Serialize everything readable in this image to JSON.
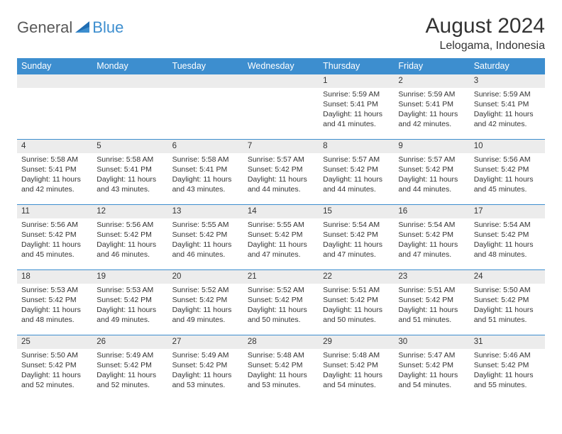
{
  "logo": {
    "general": "General",
    "blue": "Blue"
  },
  "header": {
    "title": "August 2024",
    "subtitle": "Lelogama, Indonesia"
  },
  "colors": {
    "header_bg": "#3d8ecf",
    "header_text": "#ffffff",
    "daynum_bg": "#ececec",
    "row_border": "#3d8ecf",
    "body_text": "#333333",
    "logo_general": "#585858",
    "logo_blue": "#3d8ecf"
  },
  "weekdays": [
    "Sunday",
    "Monday",
    "Tuesday",
    "Wednesday",
    "Thursday",
    "Friday",
    "Saturday"
  ],
  "weeks": [
    [
      null,
      null,
      null,
      null,
      {
        "n": "1",
        "sr": "5:59 AM",
        "ss": "5:41 PM",
        "dl": "11 hours and 41 minutes."
      },
      {
        "n": "2",
        "sr": "5:59 AM",
        "ss": "5:41 PM",
        "dl": "11 hours and 42 minutes."
      },
      {
        "n": "3",
        "sr": "5:59 AM",
        "ss": "5:41 PM",
        "dl": "11 hours and 42 minutes."
      }
    ],
    [
      {
        "n": "4",
        "sr": "5:58 AM",
        "ss": "5:41 PM",
        "dl": "11 hours and 42 minutes."
      },
      {
        "n": "5",
        "sr": "5:58 AM",
        "ss": "5:41 PM",
        "dl": "11 hours and 43 minutes."
      },
      {
        "n": "6",
        "sr": "5:58 AM",
        "ss": "5:41 PM",
        "dl": "11 hours and 43 minutes."
      },
      {
        "n": "7",
        "sr": "5:57 AM",
        "ss": "5:42 PM",
        "dl": "11 hours and 44 minutes."
      },
      {
        "n": "8",
        "sr": "5:57 AM",
        "ss": "5:42 PM",
        "dl": "11 hours and 44 minutes."
      },
      {
        "n": "9",
        "sr": "5:57 AM",
        "ss": "5:42 PM",
        "dl": "11 hours and 44 minutes."
      },
      {
        "n": "10",
        "sr": "5:56 AM",
        "ss": "5:42 PM",
        "dl": "11 hours and 45 minutes."
      }
    ],
    [
      {
        "n": "11",
        "sr": "5:56 AM",
        "ss": "5:42 PM",
        "dl": "11 hours and 45 minutes."
      },
      {
        "n": "12",
        "sr": "5:56 AM",
        "ss": "5:42 PM",
        "dl": "11 hours and 46 minutes."
      },
      {
        "n": "13",
        "sr": "5:55 AM",
        "ss": "5:42 PM",
        "dl": "11 hours and 46 minutes."
      },
      {
        "n": "14",
        "sr": "5:55 AM",
        "ss": "5:42 PM",
        "dl": "11 hours and 47 minutes."
      },
      {
        "n": "15",
        "sr": "5:54 AM",
        "ss": "5:42 PM",
        "dl": "11 hours and 47 minutes."
      },
      {
        "n": "16",
        "sr": "5:54 AM",
        "ss": "5:42 PM",
        "dl": "11 hours and 47 minutes."
      },
      {
        "n": "17",
        "sr": "5:54 AM",
        "ss": "5:42 PM",
        "dl": "11 hours and 48 minutes."
      }
    ],
    [
      {
        "n": "18",
        "sr": "5:53 AM",
        "ss": "5:42 PM",
        "dl": "11 hours and 48 minutes."
      },
      {
        "n": "19",
        "sr": "5:53 AM",
        "ss": "5:42 PM",
        "dl": "11 hours and 49 minutes."
      },
      {
        "n": "20",
        "sr": "5:52 AM",
        "ss": "5:42 PM",
        "dl": "11 hours and 49 minutes."
      },
      {
        "n": "21",
        "sr": "5:52 AM",
        "ss": "5:42 PM",
        "dl": "11 hours and 50 minutes."
      },
      {
        "n": "22",
        "sr": "5:51 AM",
        "ss": "5:42 PM",
        "dl": "11 hours and 50 minutes."
      },
      {
        "n": "23",
        "sr": "5:51 AM",
        "ss": "5:42 PM",
        "dl": "11 hours and 51 minutes."
      },
      {
        "n": "24",
        "sr": "5:50 AM",
        "ss": "5:42 PM",
        "dl": "11 hours and 51 minutes."
      }
    ],
    [
      {
        "n": "25",
        "sr": "5:50 AM",
        "ss": "5:42 PM",
        "dl": "11 hours and 52 minutes."
      },
      {
        "n": "26",
        "sr": "5:49 AM",
        "ss": "5:42 PM",
        "dl": "11 hours and 52 minutes."
      },
      {
        "n": "27",
        "sr": "5:49 AM",
        "ss": "5:42 PM",
        "dl": "11 hours and 53 minutes."
      },
      {
        "n": "28",
        "sr": "5:48 AM",
        "ss": "5:42 PM",
        "dl": "11 hours and 53 minutes."
      },
      {
        "n": "29",
        "sr": "5:48 AM",
        "ss": "5:42 PM",
        "dl": "11 hours and 54 minutes."
      },
      {
        "n": "30",
        "sr": "5:47 AM",
        "ss": "5:42 PM",
        "dl": "11 hours and 54 minutes."
      },
      {
        "n": "31",
        "sr": "5:46 AM",
        "ss": "5:42 PM",
        "dl": "11 hours and 55 minutes."
      }
    ]
  ],
  "labels": {
    "sunrise": "Sunrise:",
    "sunset": "Sunset:",
    "daylight": "Daylight:"
  }
}
